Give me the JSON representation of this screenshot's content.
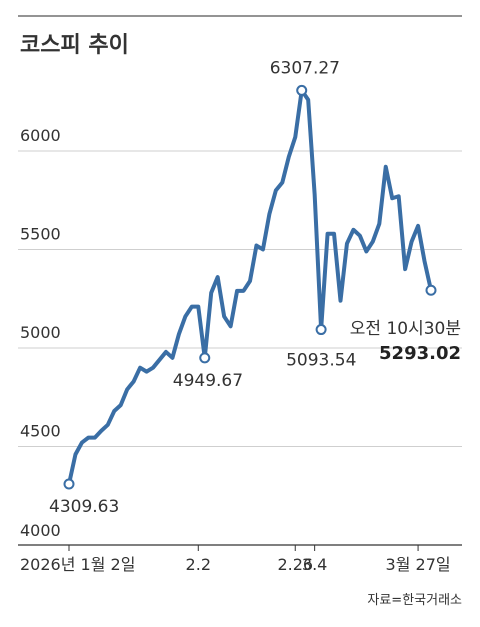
{
  "chart_data": {
    "type": "line",
    "title": "코스피 추이",
    "source": "자료=한국거래소",
    "ylim": [
      4000,
      6350
    ],
    "yticks": [
      4000,
      4500,
      5000,
      5500,
      6000
    ],
    "xticks": [
      {
        "label": "2026년 1월 2일",
        "index": 0
      },
      {
        "label": "2.2",
        "index": 20
      },
      {
        "label": "2.26",
        "index": 35
      },
      {
        "label": "3.4",
        "index": 38
      },
      {
        "label": "3월 27일",
        "index": 54
      }
    ],
    "grid": true,
    "series": [
      {
        "color": "#3a6ea5",
        "values": [
          4309.63,
          4460,
          4520,
          4545,
          4545,
          4580,
          4610,
          4680,
          4710,
          4790,
          4830,
          4900,
          4880,
          4900,
          4940,
          4980,
          4950,
          5070,
          5160,
          5210,
          5210,
          4949.67,
          5280,
          5360,
          5160,
          5110,
          5290,
          5290,
          5340,
          5520,
          5500,
          5680,
          5800,
          5840,
          5970,
          6070,
          6307.27,
          6260,
          5780,
          5093.54,
          5580,
          5580,
          5240,
          5530,
          5600,
          5570,
          5490,
          5540,
          5630,
          5920,
          5760,
          5770,
          5400,
          5540,
          5620,
          5440,
          5293.02
        ]
      }
    ],
    "annotations": [
      {
        "index": 0,
        "value": 4309.63,
        "label": "4309.63"
      },
      {
        "index": 21,
        "value": 4949.67,
        "label": "4949.67"
      },
      {
        "index": 36,
        "value": 6307.27,
        "label": "6307.27"
      },
      {
        "index": 39,
        "value": 5093.54,
        "label": "5093.54"
      },
      {
        "index": 56,
        "value": 5293.02,
        "label": "5293.02",
        "note": "오전 10시30분"
      }
    ]
  }
}
